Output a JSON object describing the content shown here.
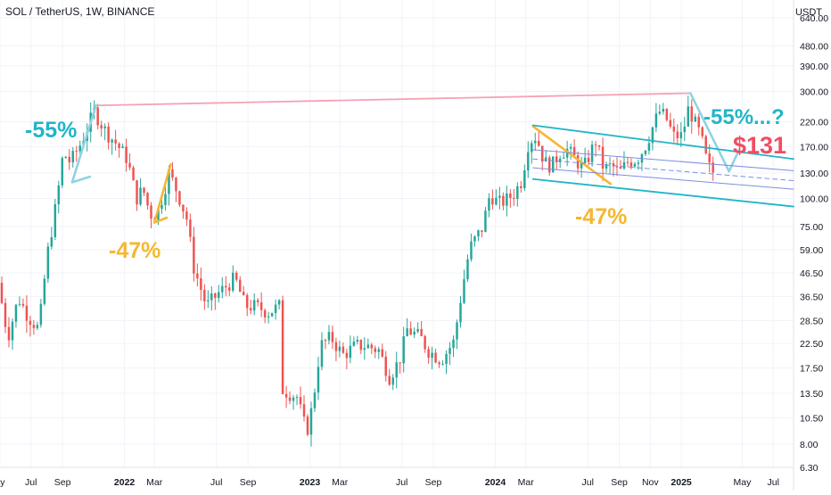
{
  "header": {
    "symbol_title": "SOL / TetherUS, 1W, BINANCE",
    "unit_label": "USDT"
  },
  "chart_data": {
    "type": "candlestick",
    "symbol": "SOL / TetherUS",
    "interval": "1W",
    "exchange": "BINANCE",
    "y_scale": "log",
    "ylim": [
      6.3,
      640
    ],
    "y_ticks": [
      "640.00",
      "480.00",
      "390.00",
      "300.00",
      "220.00",
      "170.00",
      "130.00",
      "100.00",
      "75.00",
      "59.00",
      "46.50",
      "36.50",
      "28.50",
      "22.50",
      "17.50",
      "13.50",
      "10.50",
      "8.00",
      "6.30"
    ],
    "x_ticks": [
      "ay",
      "Jul",
      "Sep",
      "2022",
      "Mar",
      "Jul",
      "Sep",
      "2023",
      "Mar",
      "Jul",
      "Sep",
      "2024",
      "Mar",
      "Jul",
      "Sep",
      "Nov",
      "2025",
      "May",
      "Jul"
    ],
    "x_tick_dates": [
      "2021-05-01",
      "2021-07-01",
      "2021-09-01",
      "2022-01-01",
      "2022-03-01",
      "2022-07-01",
      "2022-09-01",
      "2023-01-01",
      "2023-03-01",
      "2023-07-01",
      "2023-09-01",
      "2024-01-01",
      "2024-03-01",
      "2024-07-01",
      "2024-09-01",
      "2024-11-01",
      "2025-01-01",
      "2025-05-01",
      "2025-07-01"
    ],
    "xlim": [
      "2021-05-01",
      "2025-08-10"
    ],
    "price_anchors": [
      [
        "2021-05-01",
        42
      ],
      [
        "2021-05-20",
        24
      ],
      [
        "2021-06-10",
        36
      ],
      [
        "2021-06-28",
        30
      ],
      [
        "2021-07-20",
        26
      ],
      [
        "2021-08-05",
        55
      ],
      [
        "2021-08-25",
        100
      ],
      [
        "2021-09-06",
        160
      ],
      [
        "2021-09-20",
        145
      ],
      [
        "2021-10-10",
        175
      ],
      [
        "2021-11-06",
        245
      ],
      [
        "2021-11-28",
        200
      ],
      [
        "2021-12-20",
        175
      ],
      [
        "2022-01-10",
        150
      ],
      [
        "2022-01-28",
        100
      ],
      [
        "2022-02-10",
        110
      ],
      [
        "2022-02-24",
        85
      ],
      [
        "2022-03-10",
        85
      ],
      [
        "2022-03-22",
        105
      ],
      [
        "2022-04-02",
        130
      ],
      [
        "2022-04-20",
        105
      ],
      [
        "2022-05-08",
        80
      ],
      [
        "2022-05-20",
        50
      ],
      [
        "2022-06-15",
        33
      ],
      [
        "2022-07-10",
        38
      ],
      [
        "2022-08-10",
        44
      ],
      [
        "2022-08-30",
        33
      ],
      [
        "2022-09-20",
        33
      ],
      [
        "2022-10-15",
        31
      ],
      [
        "2022-11-05",
        33
      ],
      [
        "2022-11-12",
        14
      ],
      [
        "2022-12-10",
        13
      ],
      [
        "2022-12-29",
        9
      ],
      [
        "2023-01-10",
        12
      ],
      [
        "2023-01-25",
        22
      ],
      [
        "2023-02-15",
        24
      ],
      [
        "2023-03-10",
        20
      ],
      [
        "2023-04-05",
        22
      ],
      [
        "2023-04-25",
        22
      ],
      [
        "2023-05-20",
        21
      ],
      [
        "2023-06-10",
        16
      ],
      [
        "2023-06-30",
        19
      ],
      [
        "2023-07-15",
        26
      ],
      [
        "2023-08-10",
        24
      ],
      [
        "2023-08-25",
        21
      ],
      [
        "2023-09-20",
        19
      ],
      [
        "2023-10-15",
        23
      ],
      [
        "2023-10-30",
        38
      ],
      [
        "2023-11-15",
        60
      ],
      [
        "2023-12-10",
        74
      ],
      [
        "2023-12-25",
        105
      ],
      [
        "2024-01-10",
        95
      ],
      [
        "2024-01-25",
        98
      ],
      [
        "2024-02-10",
        105
      ],
      [
        "2024-02-25",
        120
      ],
      [
        "2024-03-10",
        180
      ],
      [
        "2024-03-25",
        190
      ],
      [
        "2024-04-10",
        145
      ],
      [
        "2024-04-25",
        140
      ],
      [
        "2024-05-10",
        160
      ],
      [
        "2024-05-25",
        165
      ],
      [
        "2024-06-10",
        150
      ],
      [
        "2024-06-25",
        135
      ],
      [
        "2024-07-20",
        180
      ],
      [
        "2024-08-05",
        135
      ],
      [
        "2024-08-20",
        140
      ],
      [
        "2024-09-05",
        130
      ],
      [
        "2024-09-20",
        145
      ],
      [
        "2024-10-10",
        150
      ],
      [
        "2024-10-25",
        170
      ],
      [
        "2024-11-10",
        210
      ],
      [
        "2024-11-22",
        245
      ],
      [
        "2024-12-05",
        230
      ],
      [
        "2024-12-20",
        190
      ],
      [
        "2025-01-06",
        190
      ],
      [
        "2025-01-19",
        255
      ],
      [
        "2025-02-01",
        215
      ],
      [
        "2025-02-12",
        190
      ],
      [
        "2025-02-24",
        145
      ],
      [
        "2025-03-05",
        131
      ]
    ],
    "trendlines": [
      {
        "name": "top-line",
        "color": "#f7a1b4",
        "points": [
          [
            "2021-11-06",
            260
          ],
          [
            "2025-01-19",
            295
          ]
        ]
      },
      {
        "name": "drop-2021",
        "color": "#8fd3e3",
        "points": [
          [
            "2021-11-06",
            260
          ],
          [
            "2021-09-20",
            118
          ],
          [
            "2021-10-25",
            125
          ]
        ]
      },
      {
        "name": "drop-2022",
        "color": "#f5b731",
        "points": [
          [
            "2022-04-02",
            142
          ],
          [
            "2022-03-01",
            78
          ],
          [
            "2022-03-25",
            82
          ]
        ]
      },
      {
        "name": "drop-2024",
        "color": "#f5b731",
        "points": [
          [
            "2024-03-15",
            210
          ],
          [
            "2024-08-15",
            116
          ]
        ]
      },
      {
        "name": "projection-2025",
        "color": "#8fd3e3",
        "points": [
          [
            "2025-01-19",
            295
          ],
          [
            "2025-04-05",
            132
          ],
          [
            "2025-04-25",
            165
          ]
        ]
      },
      {
        "name": "channel-upper",
        "color": "#22b5c8",
        "points": [
          [
            "2024-03-15",
            212
          ],
          [
            "2025-08-10",
            150
          ]
        ]
      },
      {
        "name": "channel-lower",
        "color": "#22b5c8",
        "points": [
          [
            "2024-03-15",
            122
          ],
          [
            "2025-08-10",
            92
          ]
        ]
      },
      {
        "name": "channel-inner-top",
        "color": "#7b8fe0",
        "points": [
          [
            "2024-03-15",
            165
          ],
          [
            "2025-08-10",
            133
          ]
        ]
      },
      {
        "name": "channel-inner-mid",
        "color": "#7b8fe0",
        "dashed": true,
        "points": [
          [
            "2024-03-15",
            150
          ],
          [
            "2025-08-10",
            120
          ]
        ]
      },
      {
        "name": "channel-inner-bottom",
        "color": "#7b8fe0",
        "points": [
          [
            "2024-03-15",
            137
          ],
          [
            "2025-08-10",
            110
          ]
        ]
      }
    ],
    "annotations": [
      {
        "text": "-55%",
        "color": "#22b5c8"
      },
      {
        "text": "-47%",
        "color": "#f5b731"
      },
      {
        "text": "-47%",
        "color": "#f5b731"
      },
      {
        "text": "-55%...?",
        "color": "#22b5c8"
      },
      {
        "text": "$131",
        "color": "#ef4e63"
      }
    ],
    "colors": {
      "up": "#26a69a",
      "down": "#ef5350",
      "grid": "#f0f3fa",
      "axis_text": "#131722"
    },
    "grid": true
  }
}
